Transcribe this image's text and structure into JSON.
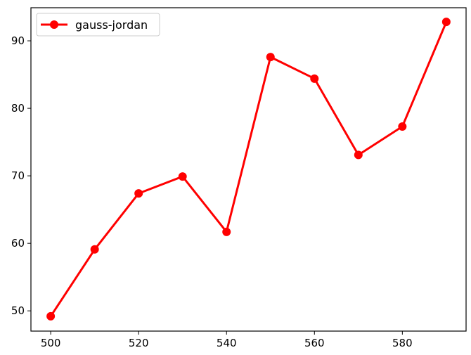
{
  "chart_data": {
    "type": "line",
    "title": "",
    "xlabel": "",
    "ylabel": "",
    "xlim": [
      495.5,
      594.5
    ],
    "ylim": [
      47.0,
      94.9
    ],
    "xticks": [
      500,
      520,
      540,
      560,
      580
    ],
    "yticks": [
      50,
      60,
      70,
      80,
      90
    ],
    "grid": false,
    "legend": {
      "position": "top-left"
    },
    "series": [
      {
        "name": "gauss-jordan",
        "color": "#ff0000",
        "marker": "circle",
        "x": [
          500,
          510,
          520,
          530,
          540,
          550,
          560,
          570,
          580,
          590
        ],
        "y": [
          49.2,
          59.1,
          67.4,
          69.9,
          61.7,
          87.6,
          84.4,
          73.1,
          77.3,
          92.8
        ]
      }
    ]
  }
}
